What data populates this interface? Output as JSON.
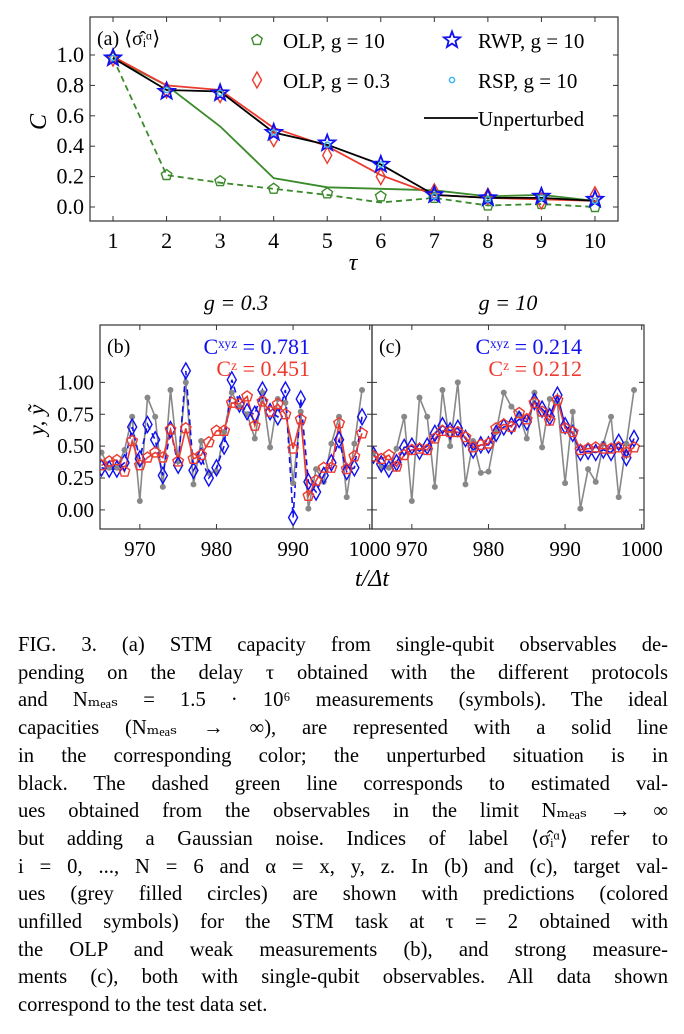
{
  "chart_data": [
    {
      "type": "line",
      "panel_label": "(a) ⟨σ̂ᵢᵅ⟩",
      "xlabel": "τ",
      "ylabel": "C",
      "x": [
        1,
        2,
        3,
        4,
        5,
        6,
        7,
        8,
        9,
        10
      ],
      "xticks": [
        "1",
        "2",
        "3",
        "4",
        "5",
        "6",
        "7",
        "8",
        "9",
        "10"
      ],
      "yticks": [
        "0.0",
        "0.2",
        "0.4",
        "0.6",
        "0.8",
        "1.0"
      ],
      "ytick_values": [
        0,
        0.2,
        0.4,
        0.6,
        0.8,
        1.0
      ],
      "xlim": [
        0.57,
        10.43
      ],
      "ylim": [
        -0.092,
        1.25
      ],
      "grid": false,
      "legend_placement": "top",
      "series": [
        {
          "line": "solid",
          "marker": "none",
          "color": "#3b8a2b",
          "values": [
            0.98,
            0.8,
            0.53,
            0.19,
            0.13,
            0.12,
            0.11,
            0.07,
            0.08,
            0.04
          ]
        },
        {
          "line": "dashed",
          "marker": "none",
          "color": "#3b8a2b",
          "values": [
            0.98,
            0.21,
            0.16,
            0.12,
            0.08,
            0.03,
            0.06,
            0.01,
            0.02,
            0.0
          ]
        },
        {
          "line": "solid",
          "marker": "none",
          "color": "#ec3b2f",
          "values": [
            0.99,
            0.8,
            0.77,
            0.52,
            0.4,
            0.21,
            0.08,
            0.06,
            0.05,
            0.04
          ]
        },
        {
          "name": "Unperturbed",
          "line": "solid",
          "marker": "none",
          "color": "#000000",
          "values": [
            0.98,
            0.77,
            0.76,
            0.49,
            0.41,
            0.28,
            0.08,
            0.06,
            0.06,
            0.04
          ]
        },
        {
          "name": "OLP, g = 10",
          "line": "none",
          "marker": "pentagon",
          "color": "#3b8a2b",
          "values": [
            0.98,
            0.21,
            0.17,
            0.12,
            0.09,
            0.07,
            0.06,
            0.01,
            0.02,
            0.0
          ]
        },
        {
          "name": "OLP, g = 0.3",
          "line": "none",
          "marker": "diamond",
          "color": "#ec3b2f",
          "values": [
            0.98,
            0.77,
            0.74,
            0.45,
            0.34,
            0.2,
            0.1,
            0.07,
            0.04,
            0.08
          ]
        },
        {
          "name": "RWP, g = 10",
          "line": "none",
          "marker": "star",
          "color": "#1010f0",
          "values": [
            0.98,
            0.76,
            0.75,
            0.49,
            0.42,
            0.28,
            0.08,
            0.06,
            0.07,
            0.05
          ]
        },
        {
          "name": "RSP, g = 10",
          "line": "none",
          "marker": "circle",
          "color": "#3fb4ea",
          "values": [
            0.98,
            0.77,
            0.75,
            0.49,
            0.41,
            0.28,
            0.07,
            0.05,
            0.06,
            0.04
          ]
        }
      ],
      "legend": [
        {
          "label": "OLP, g = 10",
          "marker": "pentagon",
          "color": "#3b8a2b"
        },
        {
          "label": "RWP, g = 10",
          "marker": "star",
          "color": "#1010f0"
        },
        {
          "label": "OLP, g = 0.3",
          "marker": "diamond",
          "color": "#ec3b2f"
        },
        {
          "label": "RSP, g = 10",
          "marker": "circle",
          "color": "#3fb4ea"
        },
        {
          "label": "Unperturbed",
          "marker": "line",
          "color": "#000000"
        }
      ]
    },
    {
      "type": "line",
      "title": "g = 0.3",
      "panel_label": "(b)",
      "annotations": [
        {
          "text": "Cˣʸᶻ = 0.781",
          "color": "#1010f0"
        },
        {
          "text": "Cᶻ = 0.451",
          "color": "#ec3b2f"
        }
      ],
      "ylabel": "y, ỹ",
      "xticks": [
        "970",
        "980",
        "990",
        "1000"
      ],
      "xtick_values": [
        970,
        980,
        990,
        1000
      ],
      "yticks": [
        "0.00",
        "0.25",
        "0.50",
        "0.75",
        "1.00"
      ],
      "ytick_values": [
        0,
        0.25,
        0.5,
        0.75,
        1.0
      ],
      "xlim": [
        964.8,
        1000.3
      ],
      "ylim": [
        -0.15,
        1.45
      ],
      "x_start": 965,
      "series": [
        {
          "role": "target",
          "line": "solid",
          "marker": "filled-circle",
          "color": "#888888",
          "values": [
            0.45,
            0.33,
            0.33,
            0.47,
            0.73,
            0.07,
            0.88,
            0.73,
            0.18,
            0.94,
            0.38,
            1.0,
            0.2,
            0.54,
            0.29,
            0.3,
            0.61,
            0.92,
            0.81,
            0.75,
            0.56,
            0.92,
            0.49,
            0.87,
            0.84,
            0.21,
            0.77,
            0.01,
            0.32,
            0.22,
            0.52,
            0.73,
            0.1,
            0.52,
            0.94
          ]
        },
        {
          "role": "prediction xyz",
          "line": "dashed",
          "marker": "diamond",
          "color": "#1010f0",
          "values": [
            0.33,
            0.32,
            0.32,
            0.37,
            0.65,
            0.4,
            0.67,
            0.55,
            0.27,
            0.63,
            0.35,
            1.09,
            0.31,
            0.42,
            0.25,
            0.33,
            0.5,
            1.02,
            0.83,
            0.77,
            0.75,
            0.94,
            0.77,
            0.73,
            0.94,
            -0.06,
            0.87,
            0.22,
            0.14,
            0.27,
            0.37,
            0.55,
            0.3,
            0.33,
            0.73
          ]
        },
        {
          "role": "prediction z",
          "line": "solid",
          "marker": "pentagon",
          "color": "#ec3b2f",
          "values": [
            0.35,
            0.38,
            0.39,
            0.3,
            0.54,
            0.35,
            0.41,
            0.45,
            0.41,
            0.63,
            0.38,
            0.64,
            0.4,
            0.43,
            0.53,
            0.62,
            0.62,
            0.84,
            0.83,
            0.89,
            0.66,
            0.85,
            0.77,
            0.83,
            0.75,
            0.48,
            0.71,
            0.11,
            0.23,
            0.33,
            0.33,
            0.68,
            0.32,
            0.42,
            0.6
          ]
        }
      ]
    },
    {
      "type": "line",
      "title": "g = 10",
      "panel_label": "(c)",
      "annotations": [
        {
          "text": "Cˣʸᶻ = 0.214",
          "color": "#1010f0"
        },
        {
          "text": "Cᶻ = 0.212",
          "color": "#ec3b2f"
        }
      ],
      "xlabel": "t/Δt",
      "xticks": [
        "970",
        "980",
        "990",
        "1000"
      ],
      "xtick_values": [
        970,
        980,
        990,
        1000
      ],
      "xlim": [
        964.8,
        1000.3
      ],
      "ylim": [
        -0.15,
        1.45
      ],
      "x_start": 965,
      "series": [
        {
          "role": "target",
          "line": "solid",
          "marker": "filled-circle",
          "color": "#888888",
          "values": [
            0.45,
            0.33,
            0.33,
            0.48,
            0.73,
            0.07,
            0.88,
            0.73,
            0.18,
            0.94,
            0.5,
            1.0,
            0.2,
            0.54,
            0.29,
            0.3,
            0.61,
            0.92,
            0.81,
            0.75,
            0.56,
            0.92,
            0.49,
            0.87,
            0.84,
            0.21,
            0.77,
            0.01,
            0.32,
            0.22,
            0.52,
            0.73,
            0.1,
            0.52,
            0.94
          ]
        },
        {
          "role": "prediction xyz",
          "line": "solid",
          "marker": "diamond",
          "color": "#1010f0",
          "values": [
            0.43,
            0.36,
            0.32,
            0.37,
            0.49,
            0.5,
            0.46,
            0.5,
            0.6,
            0.66,
            0.62,
            0.64,
            0.56,
            0.47,
            0.51,
            0.51,
            0.6,
            0.65,
            0.66,
            0.71,
            0.69,
            0.85,
            0.79,
            0.73,
            0.9,
            0.66,
            0.6,
            0.45,
            0.46,
            0.45,
            0.47,
            0.45,
            0.53,
            0.41,
            0.56
          ]
        },
        {
          "role": "prediction z",
          "line": "solid",
          "marker": "pentagon",
          "color": "#ec3b2f",
          "values": [
            0.42,
            0.4,
            0.43,
            0.34,
            0.43,
            0.47,
            0.48,
            0.47,
            0.56,
            0.62,
            0.61,
            0.61,
            0.57,
            0.49,
            0.51,
            0.52,
            0.64,
            0.67,
            0.65,
            0.76,
            0.71,
            0.84,
            0.77,
            0.7,
            0.86,
            0.64,
            0.61,
            0.47,
            0.48,
            0.49,
            0.48,
            0.48,
            0.49,
            0.45,
            0.49
          ]
        }
      ]
    }
  ],
  "caption": {
    "lines": [
      "FIG. 3.  (a) STM capacity from single-qubit observables de-",
      "pending on the delay τ obtained with the different protocols",
      "and Nₘₑₐₛ = 1.5 · 10⁶ measurements (symbols).  The ideal",
      "capacities (Nₘₑₐₛ → ∞), are represented with a solid line",
      "in the corresponding color; the unperturbed situation is in",
      "black.  The dashed green line corresponds to estimated val-",
      "ues obtained from the observables in the limit Nₘₑₐₛ → ∞",
      "but adding a Gaussian noise.  Indices of label ⟨σ̂ᵢᵅ⟩ refer to",
      "i = 0, ..., N = 6 and α = x, y, z.  In (b) and (c), target val-",
      "ues (grey filled circles) are shown with predictions (colored",
      "unfilled symbols) for the STM task at τ = 2 obtained with",
      "the OLP and weak measurements (b), and strong measure-",
      "ments (c), both with single-qubit observables. All data shown",
      "correspond to the test data set."
    ]
  }
}
